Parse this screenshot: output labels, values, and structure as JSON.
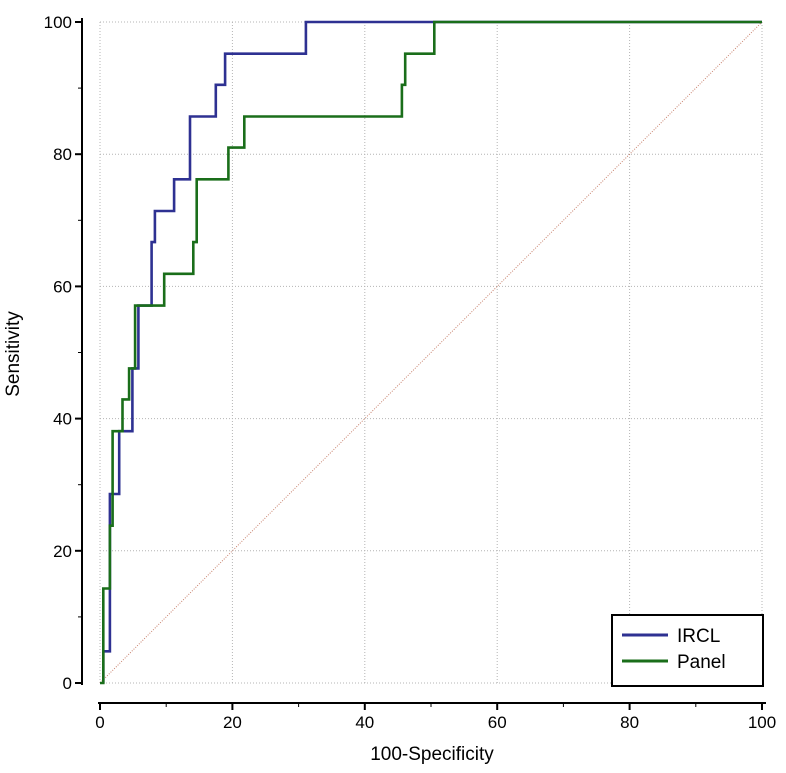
{
  "chart_data": {
    "type": "line",
    "title": "",
    "xlabel": "100-Specificity",
    "ylabel": "Sensitivity",
    "xlim": [
      0,
      100
    ],
    "ylim": [
      0,
      100
    ],
    "xticks": [
      "0",
      "20",
      "40",
      "60",
      "80",
      "100"
    ],
    "yticks": [
      "0",
      "20",
      "40",
      "60",
      "80",
      "100"
    ],
    "grid": true,
    "legend_position": "bottom-right",
    "series": [
      {
        "name": "IRCL",
        "color": "#2e3192",
        "points": [
          [
            0.5,
            0
          ],
          [
            0.5,
            4.8
          ],
          [
            1.5,
            4.8
          ],
          [
            1.5,
            28.6
          ],
          [
            2.9,
            28.6
          ],
          [
            2.9,
            38.1
          ],
          [
            4.9,
            38.1
          ],
          [
            4.9,
            47.6
          ],
          [
            5.8,
            47.6
          ],
          [
            5.8,
            57.1
          ],
          [
            7.8,
            57.1
          ],
          [
            7.8,
            66.7
          ],
          [
            8.3,
            66.7
          ],
          [
            8.3,
            71.4
          ],
          [
            11.2,
            71.4
          ],
          [
            11.2,
            76.2
          ],
          [
            13.6,
            76.2
          ],
          [
            13.6,
            85.7
          ],
          [
            17.5,
            85.7
          ],
          [
            17.5,
            90.5
          ],
          [
            18.9,
            90.5
          ],
          [
            18.9,
            95.2
          ],
          [
            31.1,
            95.2
          ],
          [
            31.1,
            100
          ],
          [
            100,
            100
          ]
        ]
      },
      {
        "name": "Panel",
        "color": "#1a6e1a",
        "points": [
          [
            0,
            0
          ],
          [
            0.5,
            0
          ],
          [
            0.5,
            14.3
          ],
          [
            1.5,
            14.3
          ],
          [
            1.5,
            23.8
          ],
          [
            1.9,
            23.8
          ],
          [
            1.9,
            38.1
          ],
          [
            3.4,
            38.1
          ],
          [
            3.4,
            42.9
          ],
          [
            4.4,
            42.9
          ],
          [
            4.4,
            47.6
          ],
          [
            5.3,
            47.6
          ],
          [
            5.3,
            57.1
          ],
          [
            9.7,
            57.1
          ],
          [
            9.7,
            61.9
          ],
          [
            14.1,
            61.9
          ],
          [
            14.1,
            66.7
          ],
          [
            14.6,
            66.7
          ],
          [
            14.6,
            76.2
          ],
          [
            19.4,
            76.2
          ],
          [
            19.4,
            81
          ],
          [
            21.8,
            81
          ],
          [
            21.8,
            85.7
          ],
          [
            45.6,
            85.7
          ],
          [
            45.6,
            90.5
          ],
          [
            46.1,
            90.5
          ],
          [
            46.1,
            95.2
          ],
          [
            50.5,
            95.2
          ],
          [
            50.5,
            100
          ],
          [
            100,
            100
          ]
        ]
      },
      {
        "name": "Reference",
        "color": "#c8826e",
        "points": [
          [
            0,
            0
          ],
          [
            100,
            100
          ]
        ]
      }
    ]
  },
  "legend": {
    "items": [
      {
        "label": "IRCL",
        "color": "#2e3192"
      },
      {
        "label": "Panel",
        "color": "#1a6e1a"
      }
    ]
  }
}
